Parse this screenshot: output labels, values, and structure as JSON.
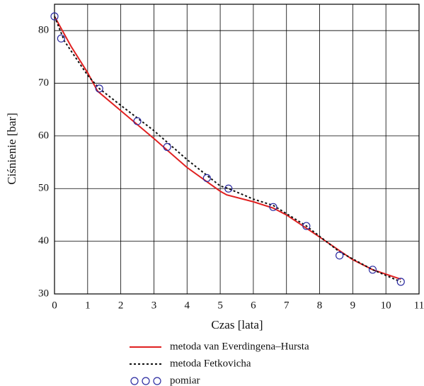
{
  "chart_data": {
    "type": "line",
    "xlabel": "Czas [lata]",
    "ylabel": "Ciśnienie [bar]",
    "xlim": [
      0,
      11
    ],
    "xticks": [
      0,
      1,
      2,
      3,
      4,
      5,
      6,
      7,
      8,
      9,
      10,
      11
    ],
    "ylim": [
      30,
      85
    ],
    "yticks": [
      30,
      40,
      50,
      60,
      70,
      80
    ],
    "grid": true,
    "legend": "bottom",
    "series": [
      {
        "name": "metoda van Everdingena–Hursta",
        "color": "#e02020",
        "style": "solid",
        "x": [
          0,
          0.5,
          1,
          1.3,
          2,
          3,
          4,
          5,
          5.2,
          6,
          6.6,
          7,
          8,
          9,
          9.6,
          10.45
        ],
        "values": [
          82.7,
          77,
          72,
          68.5,
          64.8,
          59.5,
          54,
          49.5,
          48.8,
          47.5,
          46.3,
          45,
          40.8,
          36.5,
          34.6,
          32.8
        ]
      },
      {
        "name": "metoda Fetkovicha",
        "color": "#111111",
        "style": "dotted",
        "x": [
          0,
          0.3,
          1,
          1.35,
          2,
          3,
          4,
          5,
          5.25,
          6,
          6.6,
          7.6,
          8.6,
          9.6,
          10.45
        ],
        "values": [
          82.7,
          78,
          71.5,
          69,
          65.8,
          61,
          55.5,
          50.5,
          50,
          48,
          46.8,
          42.9,
          38,
          34.6,
          32.3
        ]
      },
      {
        "name": "pomiar",
        "color": "#2a2aa0",
        "style": "markers",
        "x": [
          0,
          0.2,
          1.35,
          2.5,
          3.4,
          4.6,
          5.25,
          6.6,
          7.6,
          8.6,
          9.6,
          10.45
        ],
        "values": [
          82.7,
          78.5,
          69,
          62.8,
          57.9,
          52,
          50,
          46.5,
          42.9,
          37.3,
          34.6,
          32.3
        ]
      }
    ]
  }
}
